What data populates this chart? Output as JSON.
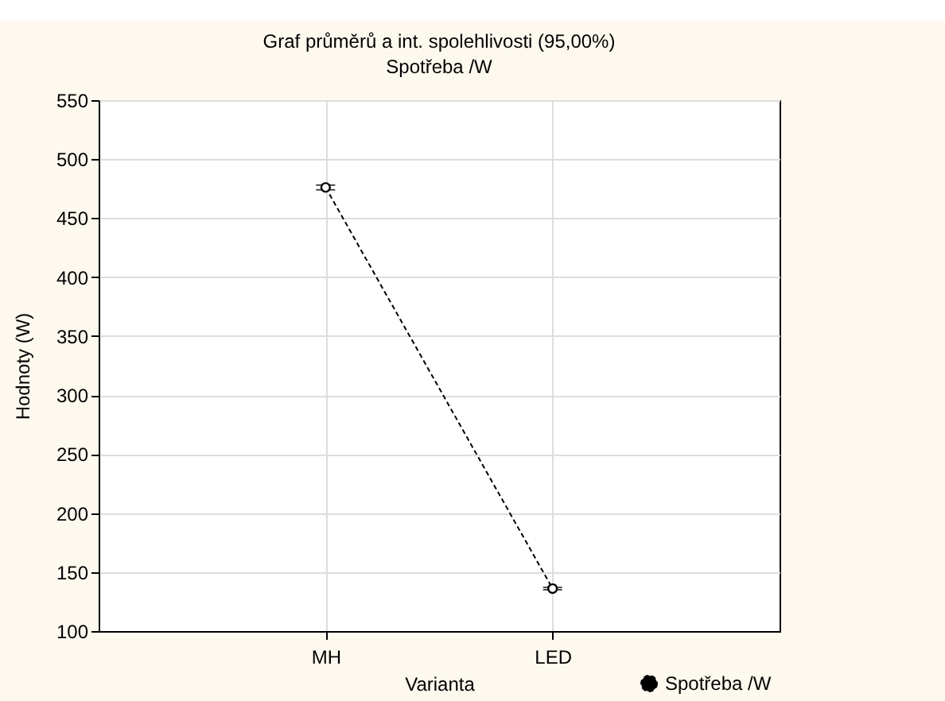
{
  "chart_data": {
    "type": "line",
    "title": "Graf průměrů a int. spolehlivosti (95,00%)",
    "subtitle": "Spotřeba /W",
    "xlabel": "Varianta",
    "ylabel": "Hodnoty (W)",
    "categories": [
      "MH",
      "LED"
    ],
    "series": [
      {
        "name": "Spotřeba /W",
        "color": "#000000",
        "values": [
          476,
          136
        ],
        "errors": [
          2,
          1
        ]
      }
    ],
    "ylim": [
      100,
      550
    ],
    "yticks": [
      100,
      150,
      200,
      250,
      300,
      350,
      400,
      450,
      500,
      550
    ],
    "grid": true,
    "legend": "bottom right",
    "marker": "circle",
    "line_style": "dashed"
  }
}
